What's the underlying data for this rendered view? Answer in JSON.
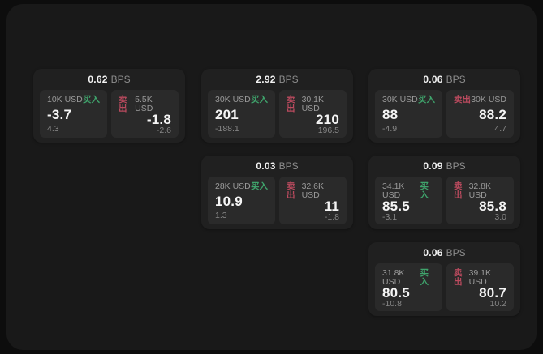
{
  "theme": {
    "page_bg": "#0d0d0d",
    "panel_bg": "#191919",
    "card_bg": "#202020",
    "subpanel_bg": "#2a2a2a",
    "buy_color": "#3fa46c",
    "sell_color": "#ba4a5e",
    "text_primary": "#f5f5f5",
    "text_secondary": "#8c8c8c"
  },
  "labels": {
    "bps_unit": "BPS",
    "buy": "买入",
    "sell": "卖出"
  },
  "cards": [
    {
      "bps": "0.62",
      "buy": {
        "size": "10K USD",
        "value": "-3.7",
        "delta": "4.3"
      },
      "sell": {
        "size": "5.5K USD",
        "value": "-1.8",
        "delta": "-2.6"
      }
    },
    {
      "bps": "2.92",
      "buy": {
        "size": "30K USD",
        "value": "201",
        "delta": "-188.1"
      },
      "sell": {
        "size": "30.1K USD",
        "value": "210",
        "delta": "196.5"
      }
    },
    {
      "bps": "0.06",
      "buy": {
        "size": "30K USD",
        "value": "88",
        "delta": "-4.9"
      },
      "sell": {
        "size": "30K USD",
        "value": "88.2",
        "delta": "4.7"
      }
    },
    {
      "bps": "0.03",
      "buy": {
        "size": "28K USD",
        "value": "10.9",
        "delta": "1.3"
      },
      "sell": {
        "size": "32.6K USD",
        "value": "11",
        "delta": "-1.8"
      }
    },
    {
      "bps": "0.09",
      "buy": {
        "size": "34.1K USD",
        "value": "85.5",
        "delta": "-3.1"
      },
      "sell": {
        "size": "32.8K USD",
        "value": "85.8",
        "delta": "3.0"
      }
    },
    {
      "bps": "0.06",
      "buy": {
        "size": "31.8K USD",
        "value": "80.5",
        "delta": "-10.8"
      },
      "sell": {
        "size": "39.1K USD",
        "value": "80.7",
        "delta": "10.2"
      }
    }
  ]
}
